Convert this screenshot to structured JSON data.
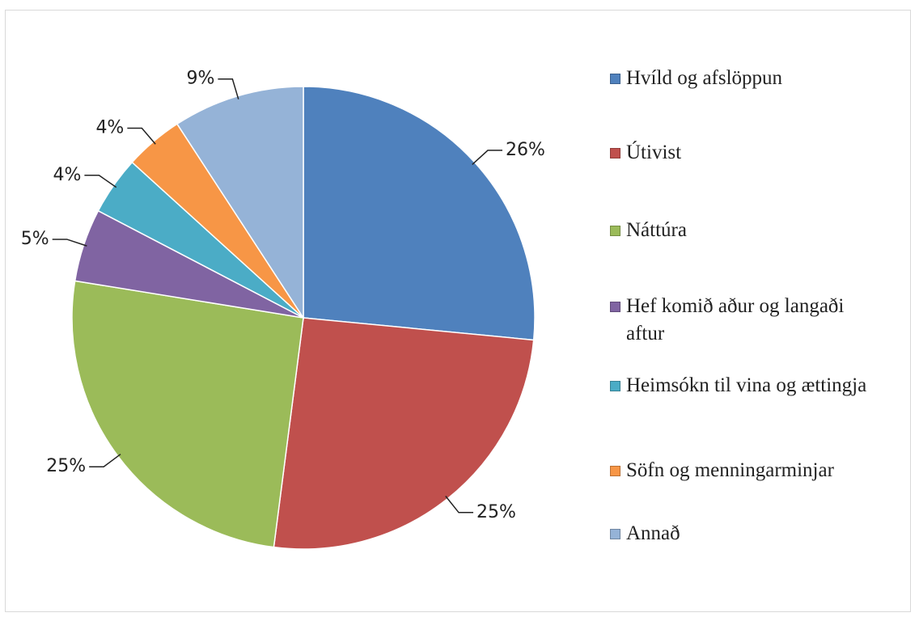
{
  "chart_data": {
    "type": "pie",
    "categories": [
      "Hvíld og afslöppun",
      "Útivist",
      "Náttúra",
      "Hef komið aður og langaði aftur",
      "Heimsókn til vina og ættingja",
      "Söfn og menningarminjar",
      "Annað"
    ],
    "values": [
      26,
      25,
      25,
      5,
      4,
      4,
      9
    ],
    "value_labels": [
      "26%",
      "25%",
      "25%",
      "5%",
      "4%",
      "4%",
      "9%"
    ],
    "colors": [
      "#4f81bd",
      "#c0504d",
      "#9bbb59",
      "#8064a2",
      "#4bacc6",
      "#f79646",
      "#95b3d7"
    ],
    "legend": "right"
  }
}
